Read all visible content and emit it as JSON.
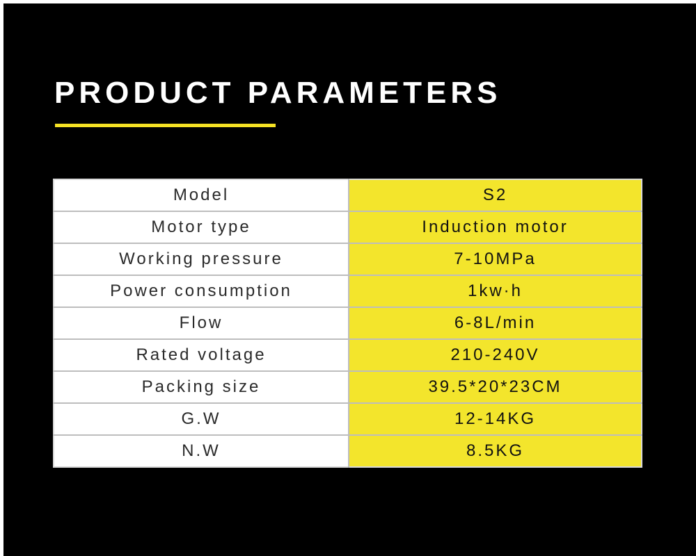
{
  "header": {
    "title": "PRODUCT PARAMETERS"
  },
  "colors": {
    "background": "#000000",
    "accent": "#f5e224",
    "value_cell": "#f3e52c"
  },
  "table": {
    "rows": [
      {
        "label": "Model",
        "value": "S2"
      },
      {
        "label": "Motor type",
        "value": "Induction motor"
      },
      {
        "label": "Working pressure",
        "value": "7-10MPa"
      },
      {
        "label": "Power consumption",
        "value": "1kw·h"
      },
      {
        "label": "Flow",
        "value": "6-8L/min"
      },
      {
        "label": "Rated voltage",
        "value": "210-240V"
      },
      {
        "label": "Packing size",
        "value": "39.5*20*23CM"
      },
      {
        "label": "G.W",
        "value": "12-14KG"
      },
      {
        "label": "N.W",
        "value": "8.5KG"
      }
    ]
  }
}
